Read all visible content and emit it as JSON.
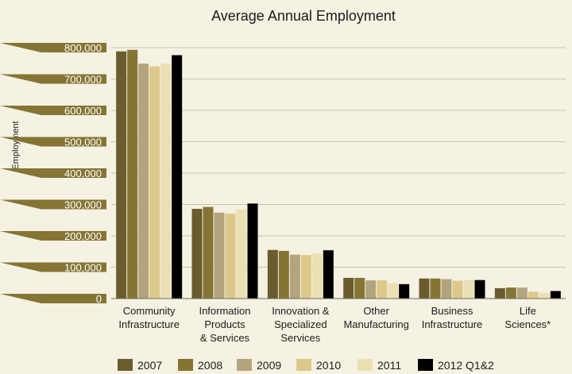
{
  "chart_data": {
    "type": "bar",
    "title": "Average Annual Employment",
    "ylabel": "Employment",
    "xlabel": "",
    "ylim": [
      0,
      800000
    ],
    "yticks": [
      0,
      100000,
      200000,
      300000,
      400000,
      500000,
      600000,
      700000,
      800000
    ],
    "ytick_labels": [
      "0",
      "100,000",
      "200,000",
      "300,000",
      "400,000",
      "500,000",
      "600,000",
      "700,000",
      "800,000"
    ],
    "grid": true,
    "legend_position": "bottom",
    "categories": [
      [
        "Community",
        "Infrastructure"
      ],
      [
        "Information",
        "Products",
        "& Services"
      ],
      [
        "Innovation &",
        "Specialized",
        "Services"
      ],
      [
        "Other",
        "Manufacturing"
      ],
      [
        "Business",
        "Infrastructure"
      ],
      [
        "Life",
        "Sciences*"
      ]
    ],
    "series": [
      {
        "name": "2007",
        "color": "#6b5c2e",
        "values": [
          788000,
          286000,
          155000,
          66000,
          64000,
          33000
        ]
      },
      {
        "name": "2008",
        "color": "#857534",
        "values": [
          793000,
          292000,
          152000,
          66000,
          64000,
          35000
        ]
      },
      {
        "name": "2009",
        "color": "#b3a47d",
        "values": [
          749000,
          274000,
          140000,
          58000,
          62000,
          35000
        ]
      },
      {
        "name": "2010",
        "color": "#dcc98a",
        "values": [
          740000,
          271000,
          139000,
          58000,
          57000,
          22000
        ]
      },
      {
        "name": "2011",
        "color": "#ebe0b4",
        "values": [
          749000,
          284000,
          144000,
          50000,
          59000,
          19000
        ]
      },
      {
        "name": "2012 Q1&2",
        "color": "#000000",
        "values": [
          776000,
          303000,
          154000,
          46000,
          59000,
          24000
        ]
      }
    ]
  }
}
